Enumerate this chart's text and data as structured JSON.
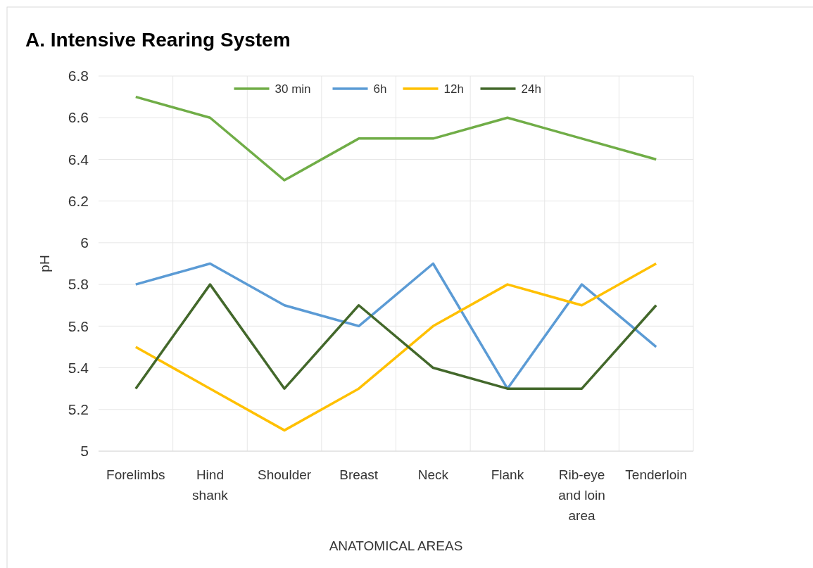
{
  "chart_data": {
    "type": "line",
    "title": "A. Intensive Rearing System",
    "xlabel": "ANATOMICAL AREAS",
    "ylabel": "pH",
    "categories": [
      "Forelimbs",
      "Hind shank",
      "Shoulder",
      "Breast",
      "Neck",
      "Flank",
      "Rib-eye and loin area",
      "Tenderloin"
    ],
    "series": [
      {
        "name": "30 min",
        "color": "#70ad47",
        "values": [
          6.7,
          6.6,
          6.3,
          6.5,
          6.5,
          6.6,
          6.5,
          6.4
        ]
      },
      {
        "name": "6h",
        "color": "#5b9bd5",
        "values": [
          5.8,
          5.9,
          5.7,
          5.6,
          5.9,
          5.3,
          5.8,
          5.5
        ]
      },
      {
        "name": "12h",
        "color": "#ffc000",
        "values": [
          5.5,
          5.3,
          5.1,
          5.3,
          5.6,
          5.8,
          5.7,
          5.9
        ]
      },
      {
        "name": "24h",
        "color": "#43682b",
        "values": [
          5.3,
          5.8,
          5.3,
          5.7,
          5.4,
          5.3,
          5.3,
          5.7
        ]
      }
    ],
    "ylim": [
      5,
      6.8
    ],
    "yticks": [
      5,
      5.2,
      5.4,
      5.6,
      5.8,
      6,
      6.2,
      6.4,
      6.6,
      6.8
    ],
    "grid": true,
    "legend": "top",
    "marker": "none",
    "line_style": "solid"
  }
}
